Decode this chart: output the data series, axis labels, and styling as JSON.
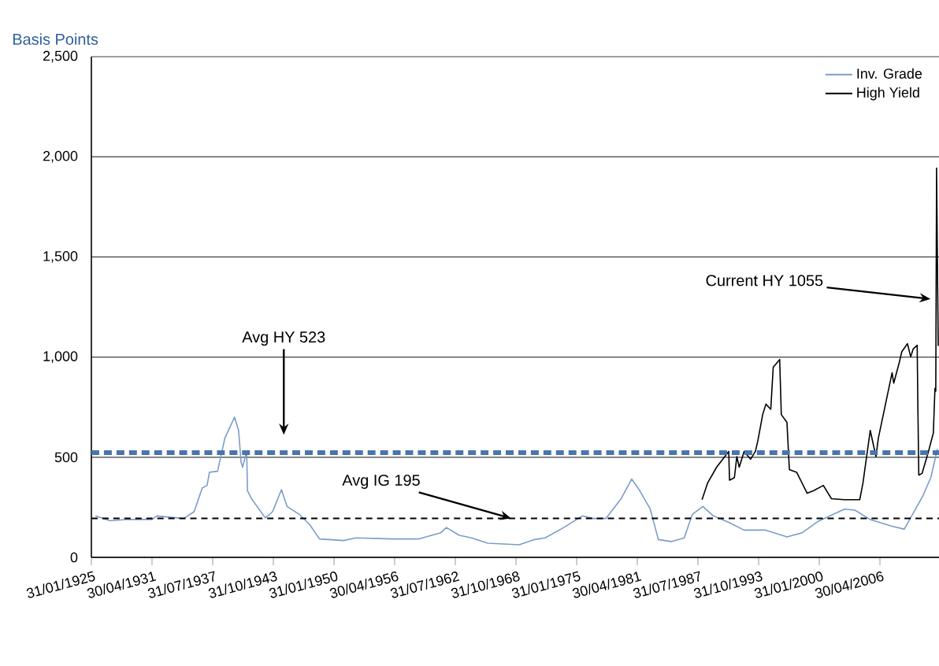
{
  "chart_data": {
    "type": "line",
    "ylabel": "Basis Points",
    "ylim": [
      0,
      2500
    ],
    "yticks": [
      0,
      500,
      {
        "value": 1000,
        "label": "1,000"
      },
      {
        "value": 1500,
        "label": "1,500"
      },
      {
        "value": 2000,
        "label": "2,000"
      },
      {
        "value": 2500,
        "label": "2,500"
      }
    ],
    "xlim": [
      "1925-01-31",
      "2012-06-01"
    ],
    "xticks": [
      {
        "value": "1925-01-31",
        "label": "31/01/1925"
      },
      {
        "value": "1931-04-30",
        "label": "30/04/1931"
      },
      {
        "value": "1937-07-31",
        "label": "31/07/1937"
      },
      {
        "value": "1943-10-31",
        "label": "31/10/1943"
      },
      {
        "value": "1950-01-31",
        "label": "31/01/1950"
      },
      {
        "value": "1956-04-30",
        "label": "30/04/1956"
      },
      {
        "value": "1962-07-31",
        "label": "31/07/1962"
      },
      {
        "value": "1968-10-31",
        "label": "31/10/1968"
      },
      {
        "value": "1975-01-31",
        "label": "31/01/1975"
      },
      {
        "value": "1981-04-30",
        "label": "30/04/1981"
      },
      {
        "value": "1987-07-31",
        "label": "31/07/1987"
      },
      {
        "value": "1993-10-31",
        "label": "31/10/1993"
      },
      {
        "value": "2000-01-31",
        "label": "31/01/2000"
      },
      {
        "value": "2006-04-30",
        "label": "30/04/2006"
      }
    ],
    "grid": "y",
    "legend": "top right",
    "marker": "none",
    "line_style": "solid",
    "series": [
      {
        "name": "Inv. Grade",
        "color": "#7b9cc9",
        "x": [
          "1925-07",
          "1927-01",
          "1928-08",
          "1931-05",
          "1931-11",
          "1934-08",
          "1935-09",
          "1936-07",
          "1937-01",
          "1937-04",
          "1938-02",
          "1938-11",
          "1939-11",
          "1940-04",
          "1940-07",
          "1940-09",
          "1941-02",
          "1941-03",
          "1941-08",
          "1943-01",
          "1943-10",
          "1944-09",
          "1945-04",
          "1946-07",
          "1947-08",
          "1948-08",
          "1951-02",
          "1952-05",
          "1956-03",
          "1958-11",
          "1961-02",
          "1961-09",
          "1963-01",
          "1964-04",
          "1965-12",
          "1969-03",
          "1970-10",
          "1971-11",
          "1973-10",
          "1975-09",
          "1976-10",
          "1978-02",
          "1979-09",
          "1980-10",
          "1981-08",
          "1982-09",
          "1983-07",
          "1984-11",
          "1986-03",
          "1987-01",
          "1988-02",
          "1989-03",
          "1990-10",
          "1992-05",
          "1994-08",
          "1996-10",
          "1998-05",
          "2000-01",
          "2002-09",
          "2003-10",
          "2005-05",
          "2007-08",
          "2008-11",
          "2010-01",
          "2010-10",
          "2011-08",
          "2012-04"
        ],
        "values": [
          207,
          183,
          189,
          189,
          207,
          194,
          228,
          346,
          359,
          425,
          430,
          595,
          700,
          634,
          477,
          450,
          529,
          333,
          293,
          197,
          228,
          338,
          254,
          215,
          163,
          92,
          84,
          97,
          92,
          92,
          123,
          149,
          110,
          97,
          71,
          63,
          89,
          97,
          149,
          207,
          194,
          194,
          293,
          391,
          333,
          241,
          89,
          79,
          97,
          215,
          254,
          207,
          175,
          136,
          136,
          102,
          123,
          181,
          241,
          236,
          189,
          155,
          141,
          241,
          307,
          399,
          542
        ]
      },
      {
        "name": "High Yield",
        "color": "#000000",
        "x": [
          "1988-01",
          "1988-08",
          "1989-07",
          "1990-10",
          "1990-11",
          "1991-05",
          "1991-08",
          "1991-11",
          "1992-05",
          "1993-01",
          "1993-07",
          "1993-10",
          "1994-04",
          "1994-08",
          "1995-02",
          "1995-05",
          "1996-01",
          "1996-03",
          "1996-10",
          "1997-01",
          "1997-10",
          "1998-11",
          "1999-07",
          "2000-07",
          "2001-05",
          "2002-09",
          "2004-04",
          "2004-08",
          "2005-05",
          "2005-12",
          "2006-03",
          "2007-08",
          "2007-10",
          "2008-05",
          "2008-08",
          "2009-03",
          "2009-07",
          "2009-10",
          "2010-03",
          "2010-04",
          "2010-05",
          "2010-09",
          "2011-05",
          "2011-11",
          "2012-01",
          "2012-02",
          "2012-03",
          "2012-05"
        ],
        "values": [
          288,
          372,
          450,
          529,
          385,
          398,
          503,
          450,
          529,
          490,
          529,
          582,
          713,
          765,
          739,
          949,
          988,
          713,
          674,
          438,
          425,
          320,
          333,
          359,
          293,
          288,
          288,
          372,
          634,
          503,
          595,
          922,
          870,
          975,
          1027,
          1067,
          1001,
          1040,
          1059,
          713,
          411,
          419,
          529,
          621,
          844,
          830,
          1944,
          1055
        ]
      }
    ],
    "ref_lines": [
      {
        "axis": "y",
        "value": 523,
        "color": "#4a74ad",
        "line_style": "dashed"
      },
      {
        "axis": "y",
        "value": 195,
        "color": "#000000",
        "line_style": "dashed"
      }
    ],
    "annotations": [
      "Avg HY 523",
      {
        "text": "Avg IG 195",
        "x": "1968-05",
        "y": 195
      },
      "Current HY 1055"
    ]
  }
}
